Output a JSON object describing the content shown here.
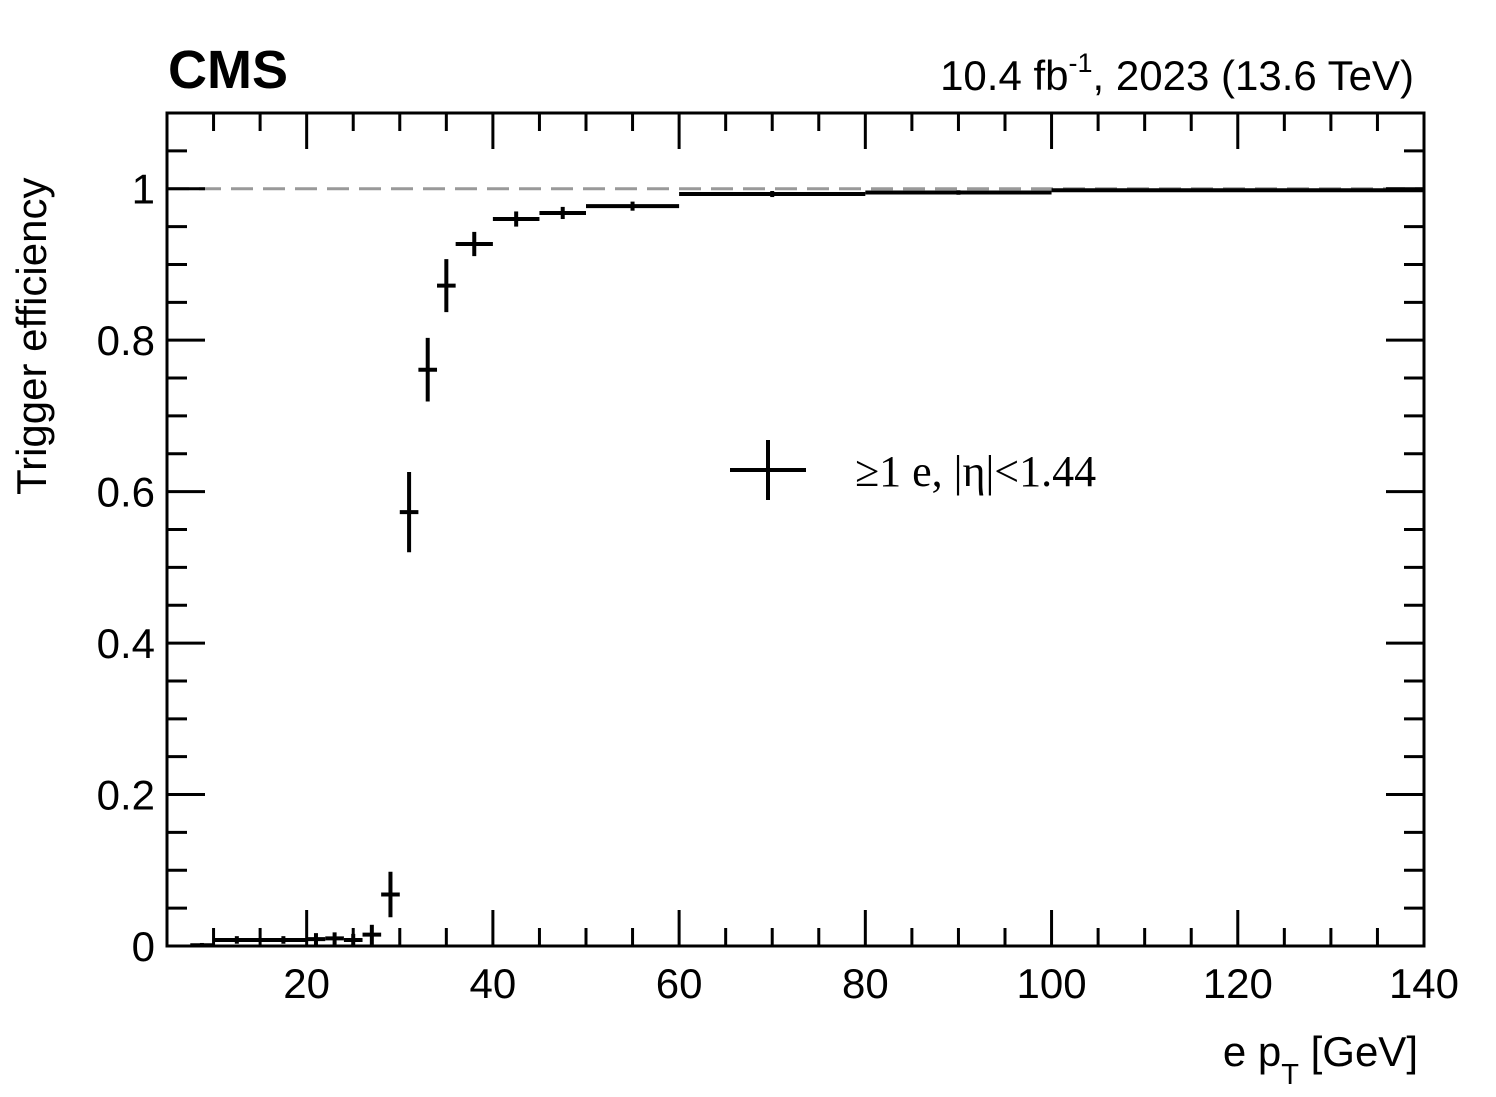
{
  "chart_data": {
    "type": "errorbar",
    "experiment": "CMS",
    "lumi": [
      "10.4 fb",
      "-1",
      ", 2023 (13.6 TeV)"
    ],
    "xlabel": [
      "e p",
      "T",
      " [GeV]"
    ],
    "ylabel": "Trigger efficiency",
    "xlim": [
      5,
      140
    ],
    "ylim": [
      0,
      1.1
    ],
    "xticks": [
      20,
      40,
      60,
      80,
      100,
      120,
      140
    ],
    "yticks": [
      0,
      0.2,
      0.4,
      0.6,
      0.8,
      1
    ],
    "xminorticks": [
      10,
      15,
      25,
      30,
      35,
      45,
      50,
      55,
      65,
      70,
      75,
      85,
      90,
      95,
      105,
      110,
      115,
      125,
      130,
      135
    ],
    "yminorticks": [
      0.05,
      0.1,
      0.15,
      0.25,
      0.3,
      0.35,
      0.45,
      0.5,
      0.55,
      0.65,
      0.7,
      0.75,
      0.85,
      0.9,
      0.95,
      1.05
    ],
    "reference_line": 1,
    "reference_color": "#999999",
    "series": [
      {
        "name": "≥1 e, |η|<1.44",
        "color": "#000000",
        "x": [
          8.75,
          12.5,
          17.5,
          21,
          23,
          25,
          27,
          29,
          31,
          33,
          35,
          38,
          42.5,
          47.5,
          55,
          70,
          90,
          120
        ],
        "xerr": [
          1.25,
          2.5,
          2.5,
          1,
          1,
          1,
          1,
          1,
          1,
          1,
          1,
          2,
          2.5,
          2.5,
          5,
          10,
          10,
          20
        ],
        "values": [
          0.001,
          0.008,
          0.008,
          0.009,
          0.01,
          0.008,
          0.015,
          0.068,
          0.573,
          0.761,
          0.872,
          0.927,
          0.96,
          0.968,
          0.977,
          0.993,
          0.995,
          0.998
        ],
        "yerr": [
          0.003,
          0.005,
          0.005,
          0.008,
          0.008,
          0.008,
          0.013,
          0.03,
          0.053,
          0.042,
          0.035,
          0.016,
          0.01,
          0.008,
          0.006,
          0.004,
          0.003,
          0.002
        ]
      }
    ]
  }
}
